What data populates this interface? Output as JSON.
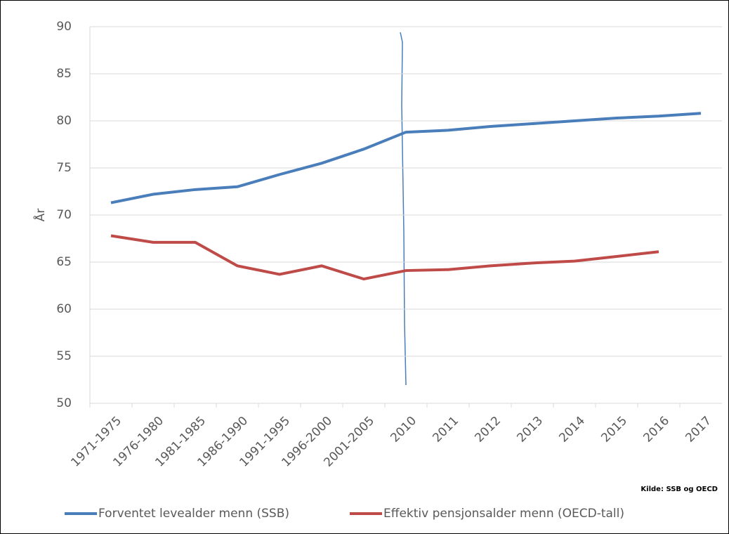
{
  "chart_data": {
    "type": "line",
    "y_label": "År",
    "source": "Kilde: SSB og OECD",
    "categories": [
      "1971-1975",
      "1976-1980",
      "1981-1985",
      "1986-1990",
      "1991-1995",
      "1996-2000",
      "2001-2005",
      "2010",
      "2011",
      "2012",
      "2013",
      "2014",
      "2015",
      "2016",
      "2017"
    ],
    "series": [
      {
        "name": "Forventet levealder menn (SSB)",
        "color": "#4a7ebb",
        "values": [
          71.3,
          72.2,
          72.7,
          73.0,
          74.3,
          75.5,
          77.0,
          78.8,
          79.0,
          79.4,
          79.7,
          80.0,
          80.3,
          80.5,
          80.8
        ]
      },
      {
        "name": "Effektiv pensjonsalder menn (OECD-tall)",
        "color": "#be4b48",
        "values": [
          67.8,
          67.1,
          67.1,
          64.6,
          63.7,
          64.6,
          63.2,
          64.1,
          64.2,
          64.6,
          64.9,
          65.1,
          65.6,
          66.1,
          null
        ]
      }
    ],
    "ylim": [
      50,
      90
    ],
    "yticks": [
      50,
      55,
      60,
      65,
      70,
      75,
      80,
      85,
      90
    ],
    "grid": true
  }
}
